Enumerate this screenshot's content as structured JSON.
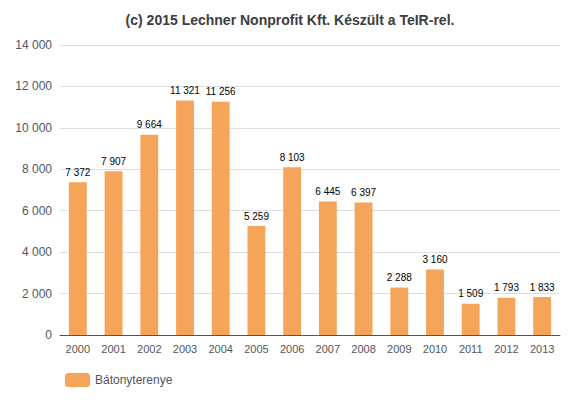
{
  "chart_data": {
    "type": "bar",
    "title": "(c) 2015 Lechner Nonprofit Kft. Készült a TeIR-rel.",
    "categories": [
      "2000",
      "2001",
      "2002",
      "2003",
      "2004",
      "2005",
      "2006",
      "2007",
      "2008",
      "2009",
      "2010",
      "2011",
      "2012",
      "2013"
    ],
    "series": [
      {
        "name": "Bátonyterenye",
        "color": "#F5A55A",
        "values": [
          7372,
          7907,
          9664,
          11321,
          11256,
          5259,
          8103,
          6445,
          6397,
          2288,
          3160,
          1509,
          1793,
          1833
        ],
        "value_labels": [
          "7 372",
          "7 907",
          "9 664",
          "11 321",
          "11 256",
          "5 259",
          "8 103",
          "6 445",
          "6 397",
          "2 288",
          "3 160",
          "1 509",
          "1 793",
          "1 833"
        ]
      }
    ],
    "ylim": [
      0,
      14000
    ],
    "yticks": [
      0,
      {
        "value": 2000,
        "label": "2 000"
      },
      {
        "value": 4000,
        "label": "4 000"
      },
      {
        "value": 6000,
        "label": "6 000"
      },
      {
        "value": 8000,
        "label": "8 000"
      },
      {
        "value": 10000,
        "label": "10 000"
      },
      {
        "value": 12000,
        "label": "12 000"
      },
      {
        "value": 14000,
        "label": "14 000"
      }
    ],
    "grid": true,
    "data_labels": true,
    "legend": "lower left"
  }
}
